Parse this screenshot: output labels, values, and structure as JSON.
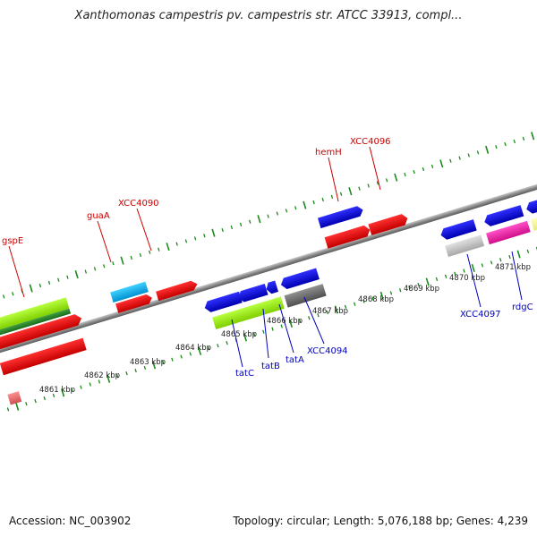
{
  "title": "Xanthomonas campestris pv. campestris str. ATCC 33913, compl...",
  "footer": {
    "accession": "Accession: NC_003902",
    "summary": "Topology: circular; Length: 5,076,188 bp; Genes: 4,239"
  },
  "kbp_ticks": [
    "4861 kbp",
    "4862 kbp",
    "4863 kbp",
    "4864 kbp",
    "4865 kbp",
    "4866 kbp",
    "4867 kbp",
    "4868 kbp",
    "4869 kbp",
    "4870 kbp",
    "4871 kbp"
  ],
  "labels_top": [
    "gspE",
    "guaA",
    "XCC4090",
    "hemH",
    "XCC4096"
  ],
  "labels_bottom": [
    "tatC",
    "tatB",
    "tatA",
    "XCC4094",
    "XCC4097",
    "rdgC"
  ],
  "colors": {
    "forward_gene": "#e81010",
    "reverse_gene": "#1010e0",
    "backbone": "#8a8a8a",
    "tick": "#1a8a1a",
    "label_top": "#cc0000",
    "label_bottom": "#0000bb"
  }
}
